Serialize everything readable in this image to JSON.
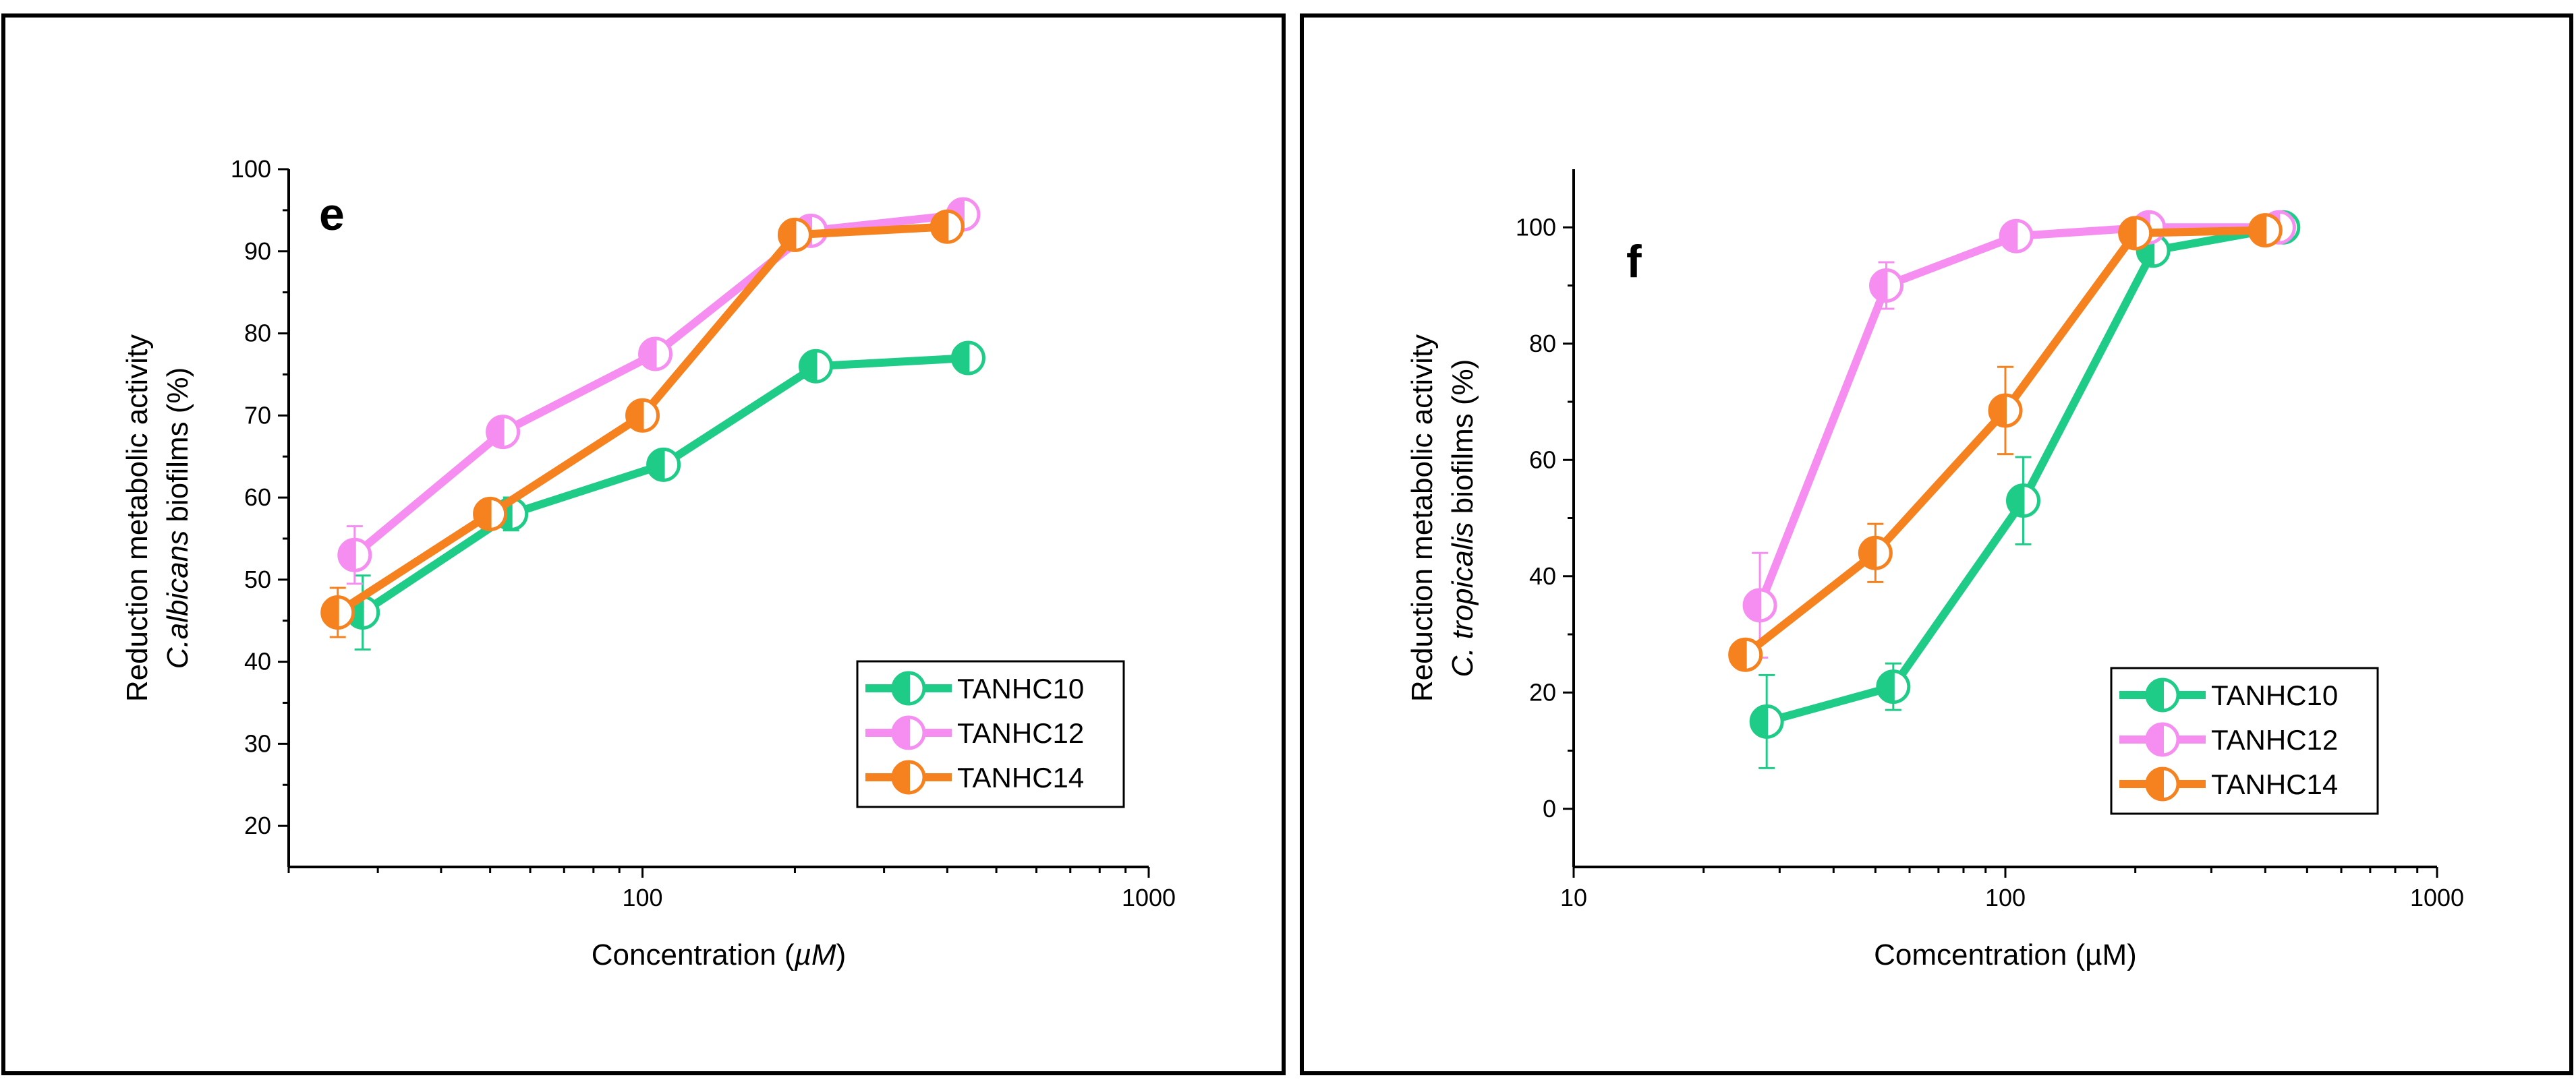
{
  "chart_data": [
    {
      "type": "line",
      "panel_letter": "e",
      "xscale": "log",
      "xlim": [
        20,
        1000
      ],
      "ylim": [
        15,
        100
      ],
      "xticks": [
        100,
        1000
      ],
      "xtick_labels": [
        "100",
        "1000"
      ],
      "yticks": [
        20,
        30,
        40,
        50,
        60,
        70,
        80,
        90,
        100
      ],
      "ytick_labels": [
        "20",
        "30",
        "40",
        "50",
        "60",
        "70",
        "80",
        "90",
        "100"
      ],
      "xlabel": {
        "prefix": "Concentration (",
        "italic": "µM",
        "suffix": ")"
      },
      "ylabel": {
        "line1": "Reduction metabolic activity",
        "line2_italic": "C.albicans",
        "line2_rest": " biofilms (%)"
      },
      "legend_position": "bottom-right",
      "series": [
        {
          "name": "TANHC10",
          "color": "#1fcc87",
          "x": [
            28,
            55,
            110,
            220,
            440
          ],
          "y": [
            46,
            58,
            64,
            76,
            77
          ],
          "err": [
            4.5,
            2.0,
            1.2,
            1.0,
            1.0
          ]
        },
        {
          "name": "TANHC12",
          "color": "#f58ef0",
          "x": [
            27,
            53,
            106,
            215,
            430
          ],
          "y": [
            53,
            68,
            77.5,
            92.5,
            94.5
          ],
          "err": [
            3.5,
            1.2,
            1.2,
            1.0,
            1.0
          ]
        },
        {
          "name": "TANHC14",
          "color": "#f5821f",
          "x": [
            25,
            50,
            100,
            200,
            400
          ],
          "y": [
            46,
            58,
            70,
            92,
            93
          ],
          "err": [
            3.0,
            1.0,
            1.0,
            1.0,
            1.0
          ]
        }
      ]
    },
    {
      "type": "line",
      "panel_letter": "f",
      "xscale": "log",
      "xlim": [
        10,
        1000
      ],
      "ylim": [
        -10,
        110
      ],
      "xticks": [
        10,
        100,
        1000
      ],
      "xtick_labels": [
        "10",
        "100",
        "1000"
      ],
      "yticks": [
        0,
        20,
        40,
        60,
        80,
        100
      ],
      "ytick_labels": [
        "0",
        "20",
        "40",
        "60",
        "80",
        "100"
      ],
      "xlabel": {
        "prefix": "Comcentration (",
        "italic": "",
        "suffix": "µM)"
      },
      "ylabel": {
        "line1": "Reduction metabolic activity",
        "line2_italic": "C. tropicalis",
        "line2_rest": " biofilms (%)"
      },
      "legend_position": "bottom-right",
      "series": [
        {
          "name": "TANHC10",
          "color": "#1fcc87",
          "x": [
            28,
            55,
            110,
            220,
            440
          ],
          "y": [
            15,
            21,
            53,
            96,
            100
          ],
          "err": [
            8,
            4,
            7.5,
            1.5,
            1
          ]
        },
        {
          "name": "TANHC12",
          "color": "#f58ef0",
          "x": [
            27,
            53,
            106,
            215,
            430
          ],
          "y": [
            35,
            90,
            98.5,
            100,
            100
          ],
          "err": [
            9,
            4,
            1.5,
            1,
            1
          ]
        },
        {
          "name": "TANHC14",
          "color": "#f5821f",
          "x": [
            25,
            50,
            100,
            200,
            400
          ],
          "y": [
            26.5,
            44,
            68.5,
            99,
            99.5
          ],
          "err": [
            2.5,
            5,
            7.5,
            1,
            1
          ]
        }
      ]
    }
  ]
}
